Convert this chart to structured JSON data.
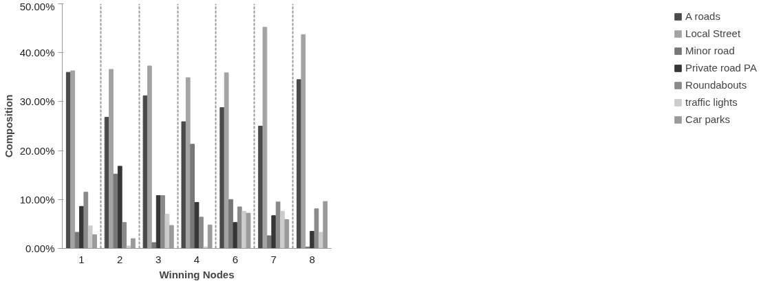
{
  "chart_data": {
    "type": "bar",
    "xlabel": "Winning Nodes",
    "ylabel": "Composition",
    "categories": [
      "1",
      "2",
      "3",
      "4",
      "6",
      "7",
      "8"
    ],
    "series": [
      {
        "name": "A roads",
        "color": "#4a4a4a",
        "values": [
          36.0,
          26.8,
          31.2,
          25.9,
          28.8,
          25.0,
          34.5
        ]
      },
      {
        "name": "Local Street",
        "color": "#a3a3a3",
        "values": [
          36.3,
          36.6,
          37.3,
          34.9,
          35.9,
          45.2,
          43.7
        ]
      },
      {
        "name": "Minor road",
        "color": "#777777",
        "values": [
          3.3,
          15.2,
          1.2,
          21.3,
          10.0,
          2.6,
          0.3
        ]
      },
      {
        "name": "Private road PA",
        "color": "#363636",
        "values": [
          8.6,
          16.8,
          10.8,
          9.4,
          5.3,
          6.7,
          3.5
        ]
      },
      {
        "name": "Roundabouts",
        "color": "#8a8a8a",
        "values": [
          11.5,
          5.3,
          10.8,
          6.4,
          8.5,
          9.5,
          8.1
        ]
      },
      {
        "name": "traffic lights",
        "color": "#cccccc",
        "values": [
          4.6,
          0.5,
          7.0,
          0.3,
          7.6,
          7.6,
          3.3
        ]
      },
      {
        "name": "Car parks",
        "color": "#9a9a9a",
        "values": [
          2.8,
          2.0,
          4.7,
          4.8,
          7.2,
          5.9,
          9.6
        ]
      }
    ],
    "ylim": [
      0,
      50
    ],
    "yticks": [
      {
        "value": 0,
        "label": "0.00%"
      },
      {
        "value": 10,
        "label": "10.00%"
      },
      {
        "value": 20,
        "label": "20.00%"
      },
      {
        "value": 30,
        "label": "30.00%"
      },
      {
        "value": 40,
        "label": "40.00%"
      },
      {
        "value": 50,
        "label": "50.00%"
      }
    ],
    "grid": "x",
    "legend": "right"
  }
}
